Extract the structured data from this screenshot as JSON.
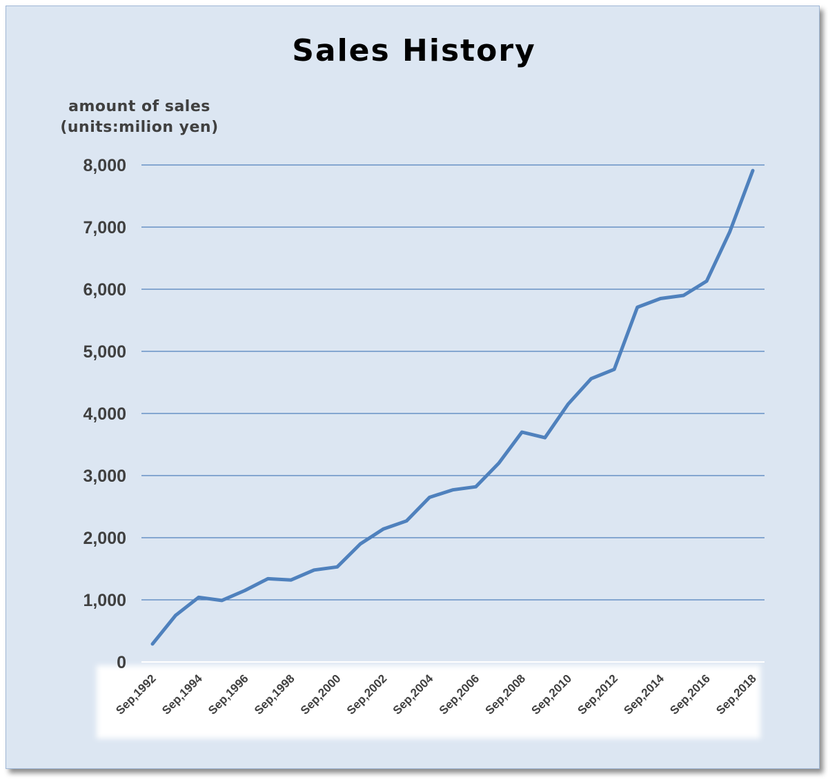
{
  "chart_data": {
    "type": "line",
    "title": "Sales History",
    "ylabel_lines": [
      "amount of sales",
      "(units:milion yen)"
    ],
    "xlabel": "",
    "ylim": [
      0,
      8000
    ],
    "yticks": [
      0,
      1000,
      2000,
      3000,
      4000,
      5000,
      6000,
      7000,
      8000
    ],
    "ytick_labels": [
      "0",
      "1,000",
      "2,000",
      "3,000",
      "4,000",
      "5,000",
      "6,000",
      "7,000",
      "8,000"
    ],
    "x": [
      1992,
      1993,
      1994,
      1995,
      1996,
      1997,
      1998,
      1999,
      2000,
      2001,
      2002,
      2003,
      2004,
      2005,
      2006,
      2007,
      2008,
      2009,
      2010,
      2011,
      2012,
      2013,
      2014,
      2015,
      2016,
      2017,
      2018
    ],
    "xtick_labels": [
      "Sep,1992",
      "Sep,1994",
      "Sep,1996",
      "Sep,1998",
      "Sep,2000",
      "Sep,2002",
      "Sep,2004",
      "Sep,2006",
      "Sep,2008",
      "Sep,2010",
      "Sep,2012",
      "Sep,2014",
      "Sep,2016",
      "Sep,2018"
    ],
    "xtick_years": [
      1992,
      1994,
      1996,
      1998,
      2000,
      2002,
      2004,
      2006,
      2008,
      2010,
      2012,
      2014,
      2016,
      2018
    ],
    "series": [
      {
        "values": [
          290,
          750,
          1040,
          990,
          1150,
          1340,
          1320,
          1480,
          1530,
          1900,
          2140,
          2270,
          2650,
          2770,
          2820,
          3200,
          3700,
          3610,
          4150,
          4560,
          4710,
          5710,
          5850,
          5900,
          6130,
          6920,
          7910
        ]
      }
    ],
    "grid": true,
    "legend": "none",
    "colors": {
      "line": "#4f81bd",
      "grid": "#4f81bd",
      "background": "#dce6f2",
      "plot_area": "#dce6f2"
    }
  }
}
